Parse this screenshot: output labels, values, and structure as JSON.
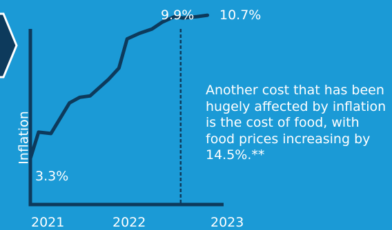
{
  "chart_data": {
    "type": "line",
    "ylabel": "Inflation",
    "x_ticks": [
      "2021",
      "2022",
      "2023"
    ],
    "series": [
      {
        "x": [
          0.0,
          0.08,
          0.2,
          0.38,
          0.48,
          0.58,
          0.76,
          0.86,
          0.94,
          1.06,
          1.18,
          1.28,
          1.4,
          1.48,
          1.62,
          1.72
        ],
        "values": [
          3.3,
          5.2,
          5.1,
          7.3,
          7.7,
          7.8,
          9.0,
          9.8,
          11.9,
          12.3,
          12.6,
          13.1,
          13.5,
          13.4,
          13.5,
          13.6
        ]
      }
    ],
    "annotations": [
      {
        "text": "3.3%"
      },
      {
        "text": "9.9%"
      },
      {
        "text": "10.7%"
      }
    ],
    "marker_x": 1.46,
    "x_range": [
      0,
      1.85
    ],
    "y_range": [
      0,
      14
    ],
    "colors": {
      "background": "#1b9ad6",
      "line": "#0d3a5c",
      "axis": "#0d3a5c",
      "text": "#ffffff"
    }
  },
  "description": "Another cost that has been hugely affected by inflation is the cost of food, with food prices increasing by 14.5%.**",
  "decor": {
    "arrow_icon": "chevron-right-icon"
  }
}
